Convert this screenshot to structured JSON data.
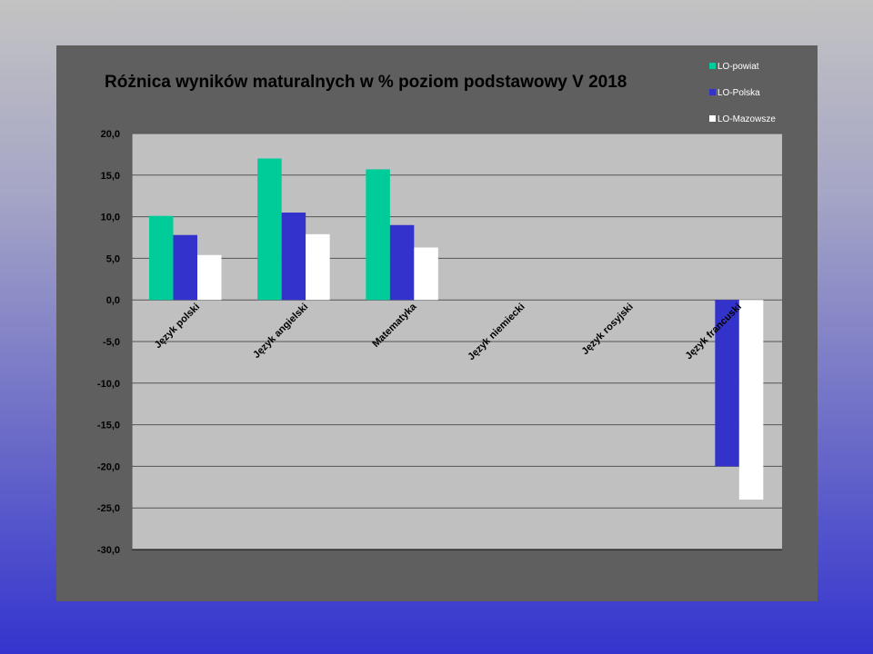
{
  "chart_data": {
    "type": "bar",
    "title": "Różnica wyników maturalnych w % poziom podstawowy V 2018",
    "categories": [
      "Język polski",
      "Język angielski",
      "Matematyka",
      "Język niemiecki",
      "Język rosyjski",
      "Język francuski"
    ],
    "series": [
      {
        "name": "LO-powiat",
        "color": "#00cc99",
        "values": [
          10.1,
          17.0,
          15.7,
          null,
          null,
          null
        ]
      },
      {
        "name": "LO-Polska",
        "color": "#3333cc",
        "values": [
          7.8,
          10.5,
          9.0,
          null,
          null,
          -20.0
        ]
      },
      {
        "name": "LO-Mazowsze",
        "color": "#ffffff",
        "values": [
          5.4,
          7.9,
          6.3,
          null,
          null,
          -24.0
        ]
      }
    ],
    "ylim": [
      -30,
      20
    ],
    "yticks": [
      "20,0",
      "15,0",
      "10,0",
      "5,0",
      "0,0",
      "-5,0",
      "-10,0",
      "-15,0",
      "-20,0",
      "-25,0",
      "-30,0"
    ],
    "ytick_values": [
      20,
      15,
      10,
      5,
      0,
      -5,
      -10,
      -15,
      -20,
      -25,
      -30
    ],
    "grid": true,
    "legend": "top-right",
    "plot_background": "#c0c0c0",
    "panel_background": "#5f5f5f"
  }
}
